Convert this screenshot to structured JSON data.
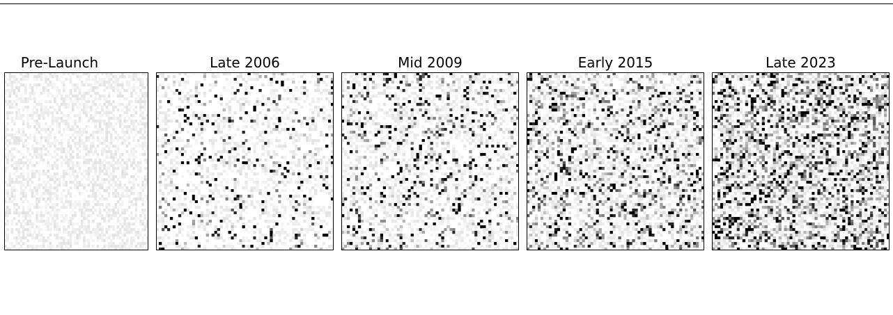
{
  "chart_data": [
    {
      "type": "heatmap",
      "title": "Pre-Launch",
      "grid_size": 64,
      "colormap": "Greys",
      "axes_visible": false,
      "fill_density": 0.0,
      "mid_tone_fraction": 0.0,
      "faint_noise_fraction": 0.55
    },
    {
      "type": "heatmap",
      "title": "Late 2006",
      "grid_size": 64,
      "colormap": "Greys",
      "axes_visible": false,
      "fill_density": 0.05,
      "mid_tone_fraction": 0.03,
      "faint_noise_fraction": 0.35
    },
    {
      "type": "heatmap",
      "title": "Mid 2009",
      "grid_size": 64,
      "colormap": "Greys",
      "axes_visible": false,
      "fill_density": 0.08,
      "mid_tone_fraction": 0.06,
      "faint_noise_fraction": 0.4
    },
    {
      "type": "heatmap",
      "title": "Early 2015",
      "grid_size": 64,
      "colormap": "Greys",
      "axes_visible": false,
      "fill_density": 0.1,
      "mid_tone_fraction": 0.12,
      "faint_noise_fraction": 0.45
    },
    {
      "type": "heatmap",
      "title": "Late 2023",
      "grid_size": 64,
      "colormap": "Greys",
      "axes_visible": false,
      "fill_density": 0.16,
      "mid_tone_fraction": 0.2,
      "faint_noise_fraction": 0.5
    }
  ]
}
